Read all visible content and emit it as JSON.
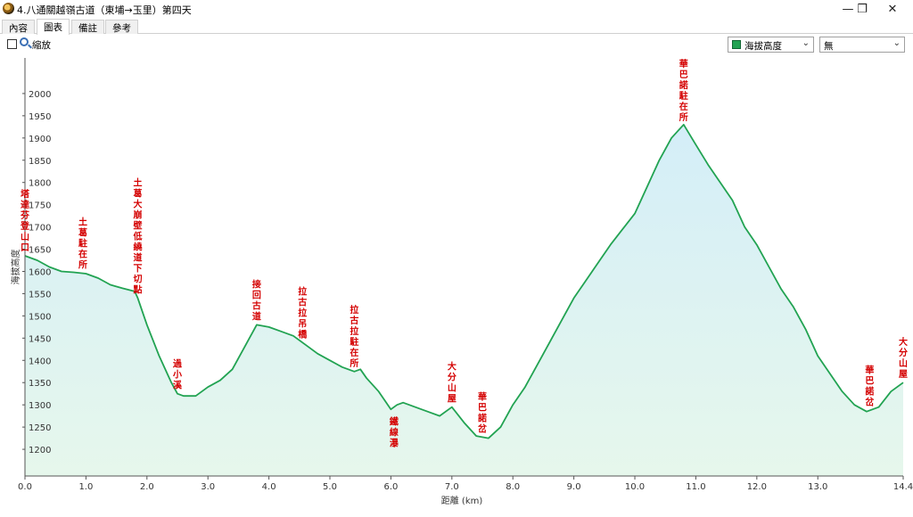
{
  "window": {
    "title": "4.八通關越嶺古道（東埔→玉里）第四天",
    "minimize_glyph": "—",
    "restore_glyph": "❐",
    "close_glyph": "✕"
  },
  "tabs": [
    {
      "label": "內容",
      "active": false
    },
    {
      "label": "圖表",
      "active": true
    },
    {
      "label": "備註",
      "active": false
    },
    {
      "label": "參考",
      "active": false
    }
  ],
  "toolbar": {
    "zoom_label": "縮放",
    "zoom_checked": false,
    "series_select": {
      "value": "海拔高度",
      "color": "#22a352"
    },
    "second_select": {
      "value": "無"
    }
  },
  "icons": {
    "app": "app-globe-icon",
    "zoom": "magnifier-icon",
    "dropdown": "chevron-down-icon"
  },
  "chart_data": {
    "type": "area",
    "title": "",
    "xlabel": "距離   (km)",
    "ylabel": "海拔高度",
    "xlim": [
      0,
      14.4
    ],
    "ylim": [
      1140,
      2080
    ],
    "x_ticks": [
      "0.0",
      "1.0",
      "2.0",
      "3.0",
      "4.0",
      "5.0",
      "6.0",
      "7.0",
      "8.0",
      "9.0",
      "10.0",
      "11.0",
      "12.0",
      "13.0",
      "14.4"
    ],
    "x_tick_values": [
      0,
      1,
      2,
      3,
      4,
      5,
      6,
      7,
      8,
      9,
      10,
      11,
      12,
      13,
      14.4
    ],
    "y_ticks": [
      1200,
      1250,
      1300,
      1350,
      1400,
      1450,
      1500,
      1550,
      1600,
      1650,
      1700,
      1750,
      1800,
      1850,
      1900,
      1950,
      2000
    ],
    "grid": false,
    "line_color": "#22a352",
    "fill_top": "#d4eef8",
    "fill_bottom": "#e6f7ec",
    "series": [
      {
        "x": [
          0,
          0.2,
          0.4,
          0.6,
          0.8,
          1.0,
          1.2,
          1.4,
          1.6,
          1.8,
          1.85,
          2.0,
          2.2,
          2.4,
          2.5,
          2.6,
          2.8,
          3.0,
          3.2,
          3.4,
          3.6,
          3.8,
          4.0,
          4.2,
          4.4,
          4.6,
          4.8,
          5.0,
          5.2,
          5.4,
          5.5,
          5.6,
          5.8,
          6.0,
          6.1,
          6.2,
          6.4,
          6.6,
          6.8,
          7.0,
          7.2,
          7.4,
          7.6,
          7.8,
          8.0,
          8.2,
          8.4,
          8.6,
          8.8,
          9.0,
          9.2,
          9.4,
          9.6,
          9.8,
          10.0,
          10.2,
          10.4,
          10.6,
          10.8,
          11.0,
          11.2,
          11.4,
          11.6,
          11.8,
          12.0,
          12.2,
          12.4,
          12.6,
          12.8,
          13.0,
          13.2,
          13.4,
          13.6,
          13.8,
          14.0,
          14.2,
          14.4
        ],
        "y": [
          1635,
          1625,
          1610,
          1600,
          1598,
          1595,
          1585,
          1570,
          1562,
          1555,
          1540,
          1480,
          1410,
          1350,
          1325,
          1320,
          1320,
          1340,
          1355,
          1380,
          1430,
          1480,
          1475,
          1465,
          1455,
          1435,
          1415,
          1400,
          1385,
          1375,
          1380,
          1360,
          1330,
          1290,
          1300,
          1305,
          1295,
          1285,
          1275,
          1295,
          1260,
          1230,
          1225,
          1250,
          1300,
          1340,
          1390,
          1440,
          1490,
          1540,
          1580,
          1620,
          1660,
          1695,
          1730,
          1790,
          1850,
          1900,
          1930,
          1885,
          1840,
          1800,
          1760,
          1700,
          1660,
          1610,
          1560,
          1520,
          1470,
          1410,
          1370,
          1330,
          1300,
          1285,
          1295,
          1330,
          1350
        ]
      }
    ],
    "annotations": [
      {
        "text": "塔達芬登山口",
        "x": 0
      },
      {
        "text": "土葛駐在所",
        "x": 0.95
      },
      {
        "text": "土葛大崩壁低繞道下切點",
        "x": 1.85
      },
      {
        "text": "過小溪",
        "x": 2.5
      },
      {
        "text": "接回古道",
        "x": 3.8
      },
      {
        "text": "拉古拉吊橋",
        "x": 4.55
      },
      {
        "text": "拉古拉駐在所",
        "x": 5.4
      },
      {
        "text": "鐵線瀑",
        "x": 6.05
      },
      {
        "text": "大分山屋",
        "x": 7.0
      },
      {
        "text": "華巴諾岔",
        "x": 7.5
      },
      {
        "text": "華巴諾駐在所",
        "x": 10.8
      },
      {
        "text": "華巴諾岔",
        "x": 13.85
      },
      {
        "text": "大分山屋",
        "x": 14.4
      }
    ]
  }
}
